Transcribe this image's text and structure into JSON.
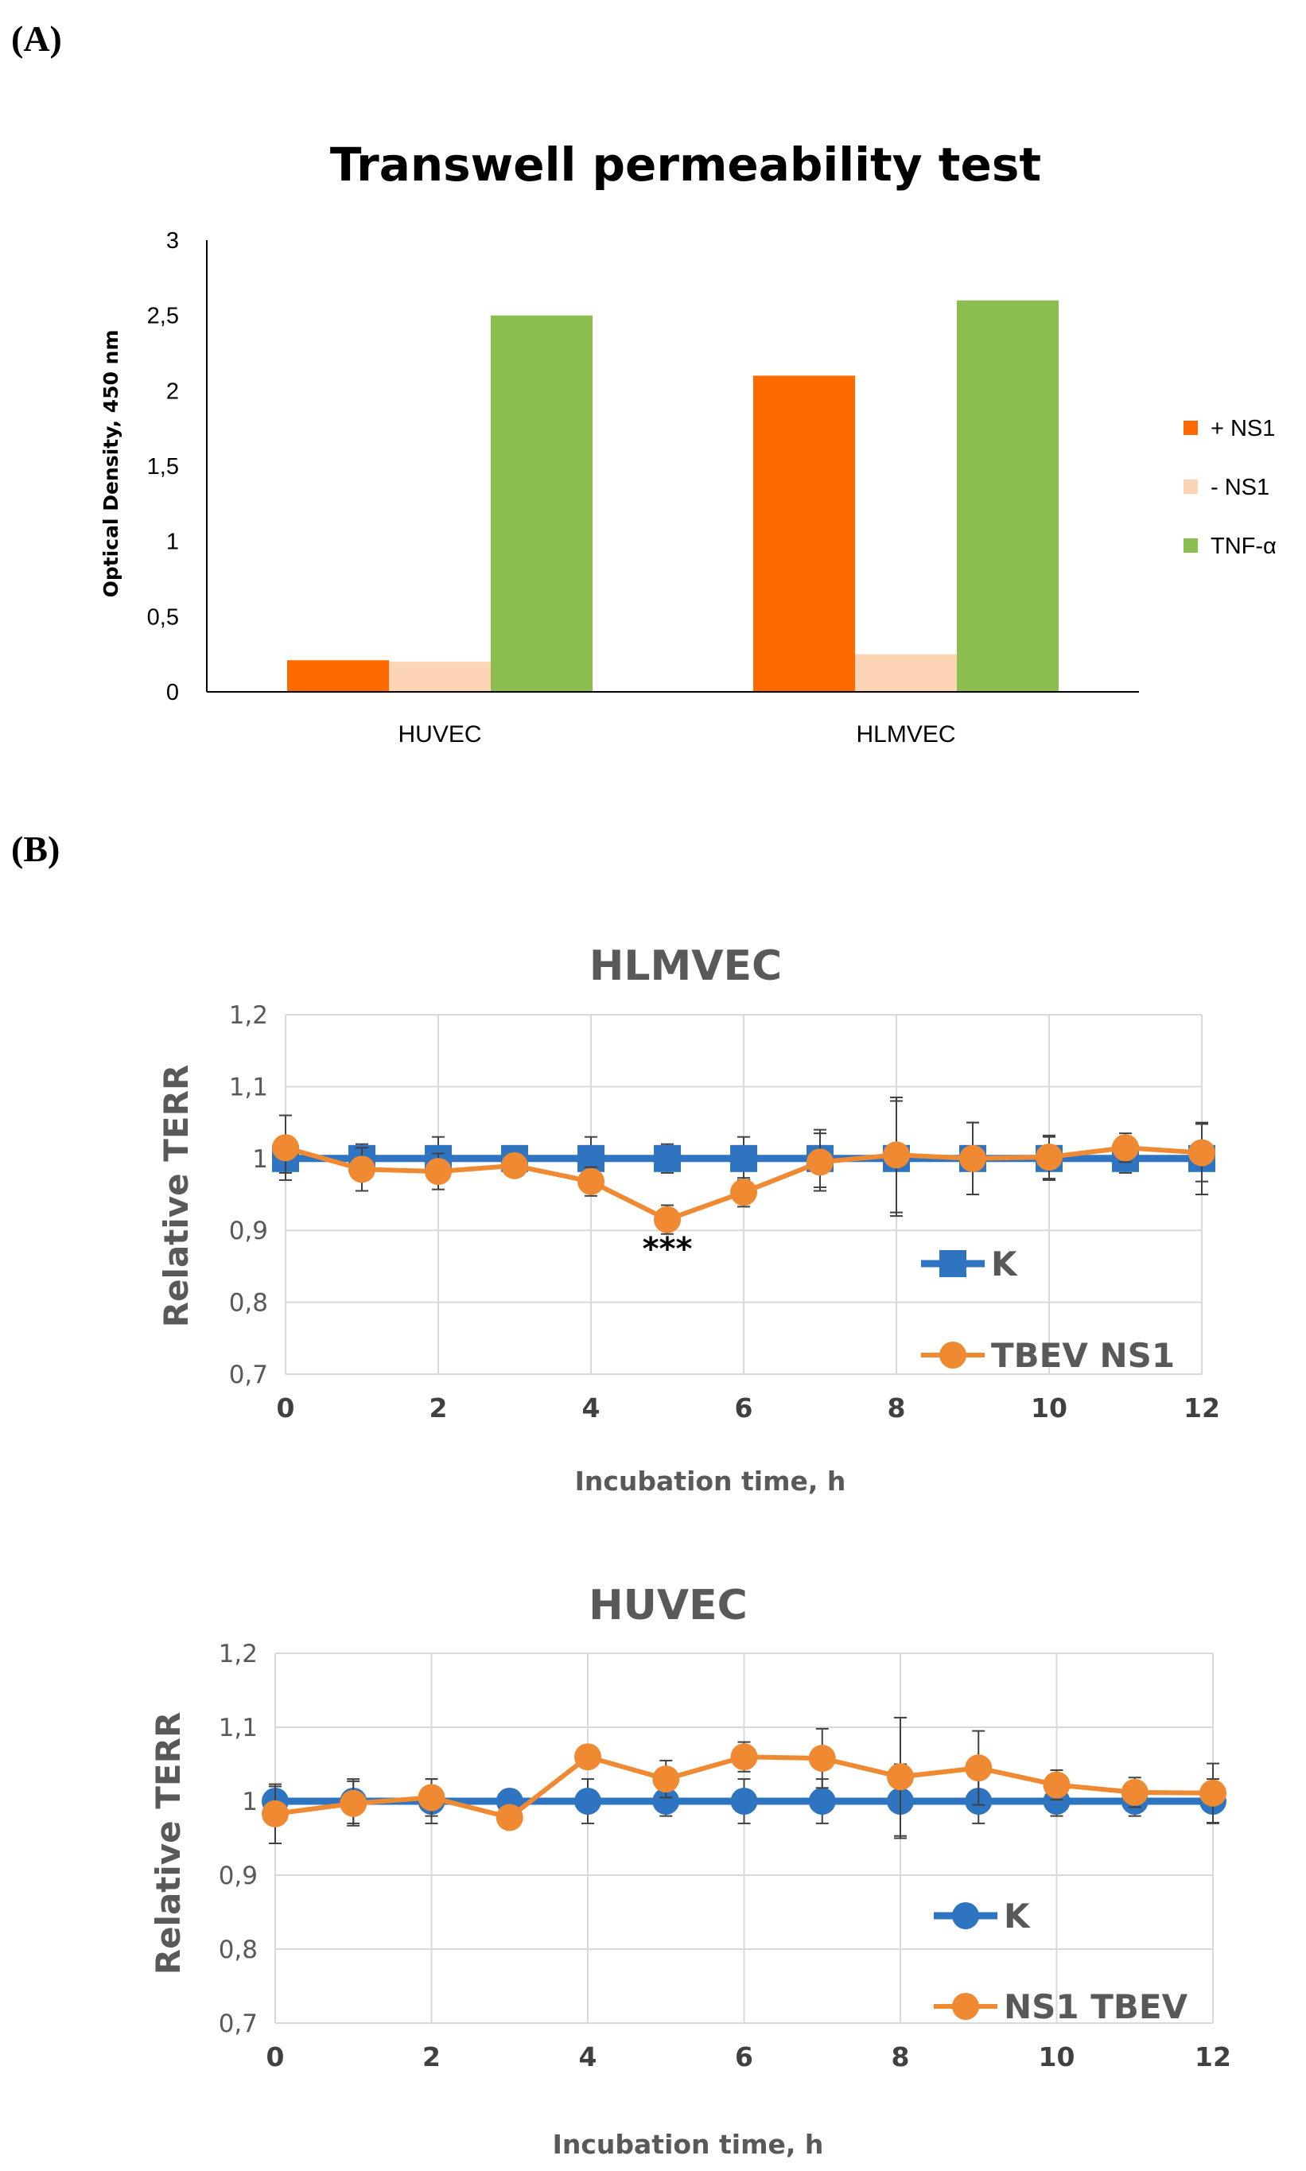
{
  "panels": {
    "a_label": "(A)",
    "b_label": "(B)"
  },
  "colors": {
    "plus_ns1": "#FF6A00",
    "minus_ns1": "#FCD5B5",
    "tnf": "#8CBE4F",
    "k": "#2F74C0",
    "ns1": "#F08A32",
    "grid": "#D9D9D9"
  },
  "chart_data": [
    {
      "type": "bar",
      "title": "Transwell permeability test",
      "ylabel": "Optical Density, 450 nm",
      "xlabel": "",
      "ylim": [
        0,
        3
      ],
      "yticks": [
        "0",
        "0,5",
        "1",
        "1,5",
        "2",
        "2,5",
        "3"
      ],
      "categories": [
        "HUVEC",
        "HLMVEC"
      ],
      "series": [
        {
          "name": "+ NS1",
          "values": [
            0.21,
            2.1
          ]
        },
        {
          "name": "- NS1",
          "values": [
            0.2,
            0.25
          ]
        },
        {
          "name": "TNF-α",
          "values": [
            2.5,
            2.6
          ]
        }
      ],
      "grid": false,
      "legend_position": "right"
    },
    {
      "type": "line",
      "title": "HLMVEC",
      "xlabel": "Incubation time, h",
      "ylabel": "Relative TERR",
      "xlim": [
        0,
        12
      ],
      "ylim": [
        0.7,
        1.2
      ],
      "xticks": [
        "0",
        "2",
        "4",
        "6",
        "8",
        "10",
        "12"
      ],
      "yticks": [
        "0,7",
        "0,8",
        "0,9",
        "1",
        "1,1",
        "1,2"
      ],
      "x": [
        0,
        1,
        2,
        3,
        4,
        5,
        6,
        7,
        8,
        9,
        10,
        11,
        12
      ],
      "series": [
        {
          "name": "K",
          "marker": "square",
          "values": [
            1,
            1,
            1,
            1,
            1,
            1,
            1,
            1,
            1,
            1,
            1,
            1,
            1
          ],
          "errors": [
            0.02,
            0.02,
            0.03,
            0.01,
            0.03,
            0.02,
            0.03,
            0.04,
            0.08,
            0.05,
            0.03,
            0.02,
            0.05
          ]
        },
        {
          "name": "TBEV NS1",
          "marker": "circle",
          "values": [
            1.015,
            0.985,
            0.982,
            0.99,
            0.968,
            0.915,
            0.953,
            0.995,
            1.005,
            1.0,
            1.002,
            1.015,
            1.008
          ],
          "errors": [
            0.045,
            0.03,
            0.025,
            0.01,
            0.02,
            0.02,
            0.02,
            0.04,
            0.08,
            0.05,
            0.03,
            0.02,
            0.04
          ]
        }
      ],
      "annotations": [
        {
          "text": "***",
          "x": 5,
          "y": 0.875
        }
      ],
      "grid": true,
      "legend_position": "bottom-right"
    },
    {
      "type": "line",
      "title": "HUVEC",
      "xlabel": "Incubation time, h",
      "ylabel": "Relative TERR",
      "xlim": [
        0,
        12
      ],
      "ylim": [
        0.7,
        1.2
      ],
      "xticks": [
        "0",
        "2",
        "4",
        "6",
        "8",
        "10",
        "12"
      ],
      "yticks": [
        "0,7",
        "0,8",
        "0,9",
        "1",
        "1,1",
        "1,2"
      ],
      "x": [
        0,
        1,
        2,
        3,
        4,
        5,
        6,
        7,
        8,
        9,
        10,
        11,
        12
      ],
      "series": [
        {
          "name": "K",
          "marker": "circle",
          "values": [
            1,
            1,
            1,
            1,
            1,
            1,
            1,
            1,
            1,
            1,
            1,
            1,
            1
          ],
          "errors": [
            0.02,
            0.03,
            0.03,
            0.01,
            0.03,
            0.02,
            0.03,
            0.03,
            0.05,
            0.03,
            0.02,
            0.02,
            0.03
          ]
        },
        {
          "name": "NS1 TBEV",
          "marker": "circle",
          "values": [
            0.983,
            0.997,
            1.005,
            0.978,
            1.06,
            1.03,
            1.06,
            1.058,
            1.033,
            1.045,
            1.022,
            1.012,
            1.011
          ],
          "errors": [
            0.04,
            0.03,
            0.025,
            0.01,
            0.015,
            0.025,
            0.02,
            0.04,
            0.08,
            0.05,
            0.02,
            0.02,
            0.04
          ]
        }
      ],
      "grid": true,
      "legend_position": "bottom-right"
    }
  ]
}
